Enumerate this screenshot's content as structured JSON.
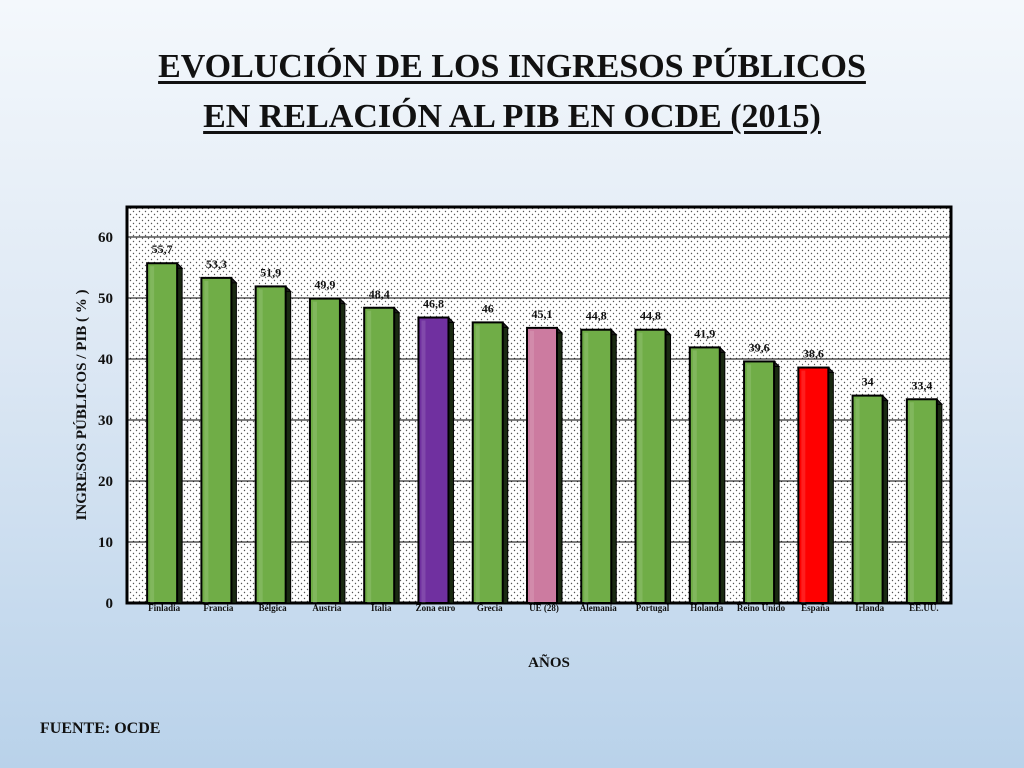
{
  "title_line1": "EVOLUCIÓN DE LOS INGRESOS PÚBLICOS",
  "title_line2": "EN RELACIÓN AL PIB EN OCDE (2015)",
  "source": "FUENTE: OCDE",
  "chart_data": {
    "type": "bar",
    "title": "EVOLUCIÓN DE LOS INGRESOS PÚBLICOS EN RELACIÓN AL PIB EN OCDE (2015)",
    "xlabel": "AÑOS",
    "ylabel": "INGRESOS PÚBLICOS / PIB  ( % )",
    "ylim": [
      0,
      60
    ],
    "yticks": [
      0,
      10,
      20,
      30,
      40,
      50,
      60
    ],
    "grid": true,
    "categories": [
      "Finladia",
      "Francia",
      "Bélgica",
      "Austria",
      "Italia",
      "Zona euro",
      "Grecia",
      "UE (28)",
      "Alemania",
      "Portugal",
      "Holanda",
      "Reino Unido",
      "España",
      "Irlanda",
      "EE.UU."
    ],
    "values": [
      55.7,
      53.3,
      51.9,
      49.9,
      48.4,
      46.8,
      46,
      45.1,
      44.8,
      44.8,
      41.9,
      39.6,
      38.6,
      34,
      33.4
    ],
    "value_labels": [
      "55,7",
      "53,3",
      "51,9",
      "49,9",
      "48,4",
      "46,8",
      "46",
      "45,1",
      "44,8",
      "44,8",
      "41,9",
      "39,6",
      "38,6",
      "34",
      "33,4"
    ],
    "colors": [
      "#70ad47",
      "#70ad47",
      "#70ad47",
      "#70ad47",
      "#70ad47",
      "#7030a0",
      "#70ad47",
      "#cc7ba0",
      "#70ad47",
      "#70ad47",
      "#70ad47",
      "#70ad47",
      "#ff0000",
      "#70ad47",
      "#70ad47"
    ],
    "plot_background": "#ffffff",
    "pattern": "dotted"
  }
}
